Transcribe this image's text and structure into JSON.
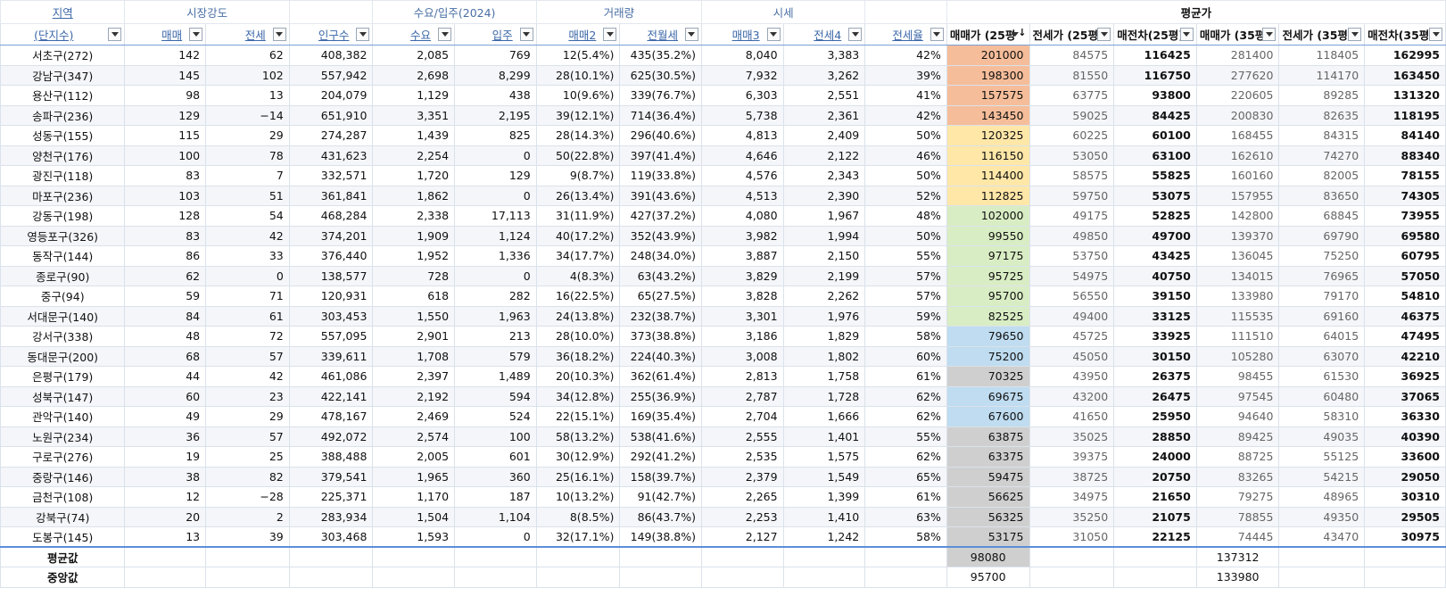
{
  "groups": {
    "region": "지역",
    "market": "시장강도",
    "supply": "수요/입주(2024)",
    "trade": "거래량",
    "price": "시세",
    "avg": "평균가"
  },
  "headers": [
    "(단지수)",
    "매매",
    "전세",
    "인구수",
    "수요",
    "입주",
    "매매2",
    "전월세",
    "매매3",
    "전세4",
    "전세율",
    "매매가 (25평",
    "전세가 (25평",
    "매전차(25평)",
    "매매가 (35평",
    "전세가 (35평",
    "매전차(35평)"
  ],
  "rows": [
    [
      "서초구(272)",
      "142",
      "62",
      "408,382",
      "2,085",
      "769",
      "12(5.4%)",
      "435(35.2%)",
      "8,040",
      "3,383",
      "42%",
      "201000",
      "84575",
      "116425",
      "281400",
      "118405",
      "162995"
    ],
    [
      "강남구(347)",
      "145",
      "102",
      "557,942",
      "2,698",
      "8,299",
      "28(10.1%)",
      "625(30.5%)",
      "7,932",
      "3,262",
      "39%",
      "198300",
      "81550",
      "116750",
      "277620",
      "114170",
      "163450"
    ],
    [
      "용산구(112)",
      "98",
      "13",
      "204,079",
      "1,129",
      "438",
      "10(9.6%)",
      "339(76.7%)",
      "6,303",
      "2,551",
      "41%",
      "157575",
      "63775",
      "93800",
      "220605",
      "89285",
      "131320"
    ],
    [
      "송파구(236)",
      "129",
      "−14",
      "651,910",
      "3,351",
      "2,195",
      "39(12.1%)",
      "714(36.4%)",
      "5,738",
      "2,361",
      "42%",
      "143450",
      "59025",
      "84425",
      "200830",
      "82635",
      "118195"
    ],
    [
      "성동구(155)",
      "115",
      "29",
      "274,287",
      "1,439",
      "825",
      "28(14.3%)",
      "296(40.6%)",
      "4,813",
      "2,409",
      "50%",
      "120325",
      "60225",
      "60100",
      "168455",
      "84315",
      "84140"
    ],
    [
      "양천구(176)",
      "100",
      "78",
      "431,623",
      "2,254",
      "0",
      "50(22.8%)",
      "397(41.4%)",
      "4,646",
      "2,122",
      "46%",
      "116150",
      "53050",
      "63100",
      "162610",
      "74270",
      "88340"
    ],
    [
      "광진구(118)",
      "83",
      "7",
      "332,571",
      "1,720",
      "129",
      "9(8.7%)",
      "119(33.8%)",
      "4,576",
      "2,343",
      "50%",
      "114400",
      "58575",
      "55825",
      "160160",
      "82005",
      "78155"
    ],
    [
      "마포구(236)",
      "103",
      "51",
      "361,841",
      "1,862",
      "0",
      "26(13.4%)",
      "391(43.6%)",
      "4,513",
      "2,390",
      "52%",
      "112825",
      "59750",
      "53075",
      "157955",
      "83650",
      "74305"
    ],
    [
      "강동구(198)",
      "128",
      "54",
      "468,284",
      "2,338",
      "17,113",
      "31(11.9%)",
      "427(37.2%)",
      "4,080",
      "1,967",
      "48%",
      "102000",
      "49175",
      "52825",
      "142800",
      "68845",
      "73955"
    ],
    [
      "영등포구(326)",
      "83",
      "42",
      "374,201",
      "1,909",
      "1,124",
      "40(17.2%)",
      "352(43.9%)",
      "3,982",
      "1,994",
      "50%",
      "99550",
      "49850",
      "49700",
      "139370",
      "69790",
      "69580"
    ],
    [
      "동작구(144)",
      "86",
      "33",
      "376,440",
      "1,952",
      "1,336",
      "34(17.7%)",
      "248(34.0%)",
      "3,887",
      "2,150",
      "55%",
      "97175",
      "53750",
      "43425",
      "136045",
      "75250",
      "60795"
    ],
    [
      "종로구(90)",
      "62",
      "0",
      "138,577",
      "728",
      "0",
      "4(8.3%)",
      "63(43.2%)",
      "3,829",
      "2,199",
      "57%",
      "95725",
      "54975",
      "40750",
      "134015",
      "76965",
      "57050"
    ],
    [
      "중구(94)",
      "59",
      "71",
      "120,931",
      "618",
      "282",
      "16(22.5%)",
      "65(27.5%)",
      "3,828",
      "2,262",
      "57%",
      "95700",
      "56550",
      "39150",
      "133980",
      "79170",
      "54810"
    ],
    [
      "서대문구(140)",
      "84",
      "61",
      "303,453",
      "1,550",
      "1,963",
      "24(13.8%)",
      "232(38.7%)",
      "3,301",
      "1,976",
      "59%",
      "82525",
      "49400",
      "33125",
      "115535",
      "69160",
      "46375"
    ],
    [
      "강서구(338)",
      "48",
      "72",
      "557,095",
      "2,901",
      "213",
      "28(10.0%)",
      "373(38.8%)",
      "3,186",
      "1,829",
      "58%",
      "79650",
      "45725",
      "33925",
      "111510",
      "64015",
      "47495"
    ],
    [
      "동대문구(200)",
      "68",
      "57",
      "339,611",
      "1,708",
      "579",
      "36(18.2%)",
      "224(40.3%)",
      "3,008",
      "1,802",
      "60%",
      "75200",
      "45050",
      "30150",
      "105280",
      "63070",
      "42210"
    ],
    [
      "은평구(179)",
      "44",
      "42",
      "461,086",
      "2,397",
      "1,489",
      "20(10.3%)",
      "362(61.4%)",
      "2,813",
      "1,758",
      "61%",
      "70325",
      "43950",
      "26375",
      "98455",
      "61530",
      "36925"
    ],
    [
      "성북구(147)",
      "60",
      "23",
      "422,141",
      "2,192",
      "594",
      "34(12.8%)",
      "255(36.9%)",
      "2,787",
      "1,728",
      "62%",
      "69675",
      "43200",
      "26475",
      "97545",
      "60480",
      "37065"
    ],
    [
      "관악구(140)",
      "49",
      "29",
      "478,167",
      "2,469",
      "524",
      "22(15.1%)",
      "169(35.4%)",
      "2,704",
      "1,666",
      "62%",
      "67600",
      "41650",
      "25950",
      "94640",
      "58310",
      "36330"
    ],
    [
      "노원구(234)",
      "36",
      "57",
      "492,072",
      "2,574",
      "100",
      "58(13.2%)",
      "538(41.6%)",
      "2,555",
      "1,401",
      "55%",
      "63875",
      "35025",
      "28850",
      "89425",
      "49035",
      "40390"
    ],
    [
      "구로구(276)",
      "19",
      "25",
      "388,488",
      "2,005",
      "601",
      "30(12.9%)",
      "292(41.2%)",
      "2,535",
      "1,575",
      "62%",
      "63375",
      "39375",
      "24000",
      "88725",
      "55125",
      "33600"
    ],
    [
      "중랑구(146)",
      "38",
      "82",
      "379,541",
      "1,965",
      "360",
      "25(16.1%)",
      "158(39.7%)",
      "2,379",
      "1,549",
      "65%",
      "59475",
      "38725",
      "20750",
      "83265",
      "54215",
      "29050"
    ],
    [
      "금천구(108)",
      "12",
      "−28",
      "225,371",
      "1,170",
      "187",
      "10(13.2%)",
      "91(42.7%)",
      "2,265",
      "1,399",
      "61%",
      "56625",
      "34975",
      "21650",
      "79275",
      "48965",
      "30310"
    ],
    [
      "강북구(74)",
      "20",
      "2",
      "283,934",
      "1,504",
      "1,104",
      "8(8.5%)",
      "86(43.7%)",
      "2,253",
      "1,410",
      "63%",
      "56325",
      "35250",
      "21075",
      "78855",
      "49350",
      "29505"
    ],
    [
      "도봉구(145)",
      "13",
      "39",
      "303,468",
      "1,593",
      "0",
      "32(17.1%)",
      "149(38.8%)",
      "2,127",
      "1,242",
      "58%",
      "53175",
      "31050",
      "22125",
      "74445",
      "43470",
      "30975"
    ]
  ],
  "row_colors": [
    "orange",
    "orange",
    "orange",
    "orange",
    "yellow",
    "yellow",
    "yellow",
    "yellow",
    "green",
    "green",
    "green",
    "green",
    "green",
    "green",
    "blue",
    "blue",
    "gray",
    "blue",
    "blue",
    "gray",
    "gray",
    "gray",
    "gray",
    "gray",
    "gray"
  ],
  "colors": {
    "orange": "#f5bd9a",
    "yellow": "#ffe7a8",
    "green": "#d9edc4",
    "blue": "#bfdcf0",
    "gray": "#cfcfcf",
    "header_link": "#3b67a8",
    "selection_border": "#5b8fd8"
  },
  "summary": {
    "avg_label": "평균값",
    "median_label": "중앙값",
    "avg_25": "98080",
    "avg_35": "137312",
    "median_25": "95700",
    "median_35": "133980"
  },
  "icons": {
    "filter": "chevron-down-icon",
    "sort": "sort-descending-icon"
  }
}
